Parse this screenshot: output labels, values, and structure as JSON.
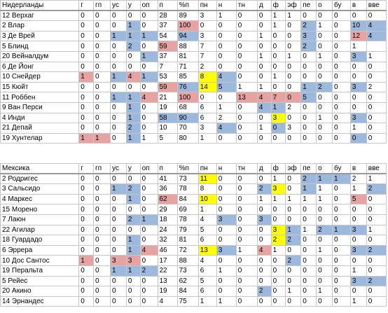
{
  "tables": [
    {
      "headers": [
        "Нидерланды",
        "г",
        "гп",
        "ус",
        "у",
        "оп",
        "п",
        "%п",
        "пн",
        "н",
        "тн",
        "д",
        "ф",
        "эф",
        "пе",
        "о",
        "бу",
        "в",
        "вве"
      ],
      "rows": [
        [
          "12 Верхаг",
          "0",
          "0",
          "0",
          "0",
          "0",
          "28",
          "89",
          "3",
          "1",
          "0",
          "0",
          "1",
          "1",
          "0",
          "0",
          "0",
          "0",
          "0"
        ],
        [
          "2 Влар",
          "0",
          "0",
          "0",
          "1",
          "0",
          "37",
          "100",
          "0",
          "0",
          "0",
          "0",
          "1",
          "0",
          "2",
          "1",
          "0",
          "10",
          "4"
        ],
        [
          "3 Де Врей",
          "0",
          "0",
          "1",
          "1",
          "1",
          "54",
          "94",
          "3",
          "0",
          "0",
          "1",
          "0",
          "0",
          "3",
          "0",
          "0",
          "12",
          "4"
        ],
        [
          "5 Блинд",
          "0",
          "0",
          "0",
          "2",
          "0",
          "59",
          "88",
          "7",
          "0",
          "0",
          "0",
          "0",
          "0",
          "2",
          "0",
          "0",
          "1",
          ""
        ],
        [
          "20 Вейналдум",
          "0",
          "0",
          "0",
          "0",
          "1",
          "37",
          "81",
          "7",
          "0",
          "0",
          "1",
          "0",
          "1",
          "0",
          "1",
          "0",
          "3",
          "1"
        ],
        [
          "6 Де Йонг",
          "0",
          "0",
          "0",
          "0",
          "0",
          "7",
          "71",
          "2",
          "0",
          "0",
          "0",
          "0",
          "0",
          "0",
          "0",
          "0",
          "0",
          "0"
        ],
        [
          "10 Снейдер",
          "1",
          "0",
          "1",
          "4",
          "1",
          "53",
          "85",
          "8",
          "4",
          "0",
          "0",
          "1",
          "0",
          "0",
          "0",
          "0",
          "0",
          "0"
        ],
        [
          "15 Кюйт",
          "0",
          "0",
          "0",
          "0",
          "0",
          "59",
          "76",
          "14",
          "5",
          "1",
          "1",
          "0",
          "0",
          "1",
          "2",
          "0",
          "3",
          "2"
        ],
        [
          "11 Роббен",
          "0",
          "0",
          "1",
          "1",
          "4",
          "21",
          "100",
          "0",
          "0",
          "13",
          "4",
          "7",
          "0",
          "5",
          "0",
          "0",
          "0",
          "0"
        ],
        [
          "9 Ван Перси",
          "0",
          "0",
          "0",
          "1",
          "0",
          "19",
          "68",
          "6",
          "1",
          "0",
          "4",
          "1",
          "2",
          "0",
          "0",
          "0",
          "0",
          "0"
        ],
        [
          "4 Инди",
          "0",
          "0",
          "0",
          "1",
          "0",
          "58",
          "90",
          "6",
          "2",
          "0",
          "0",
          "3",
          "0",
          "0",
          "1",
          "0",
          "3",
          "0"
        ],
        [
          "21 Депай",
          "0",
          "0",
          "0",
          "2",
          "0",
          "10",
          "70",
          "3",
          "4",
          "0",
          "1",
          "0",
          "3",
          "0",
          "0",
          "0",
          "1",
          "0"
        ],
        [
          "19 Хунтелар",
          "1",
          "1",
          "0",
          "1",
          "1",
          "5",
          "80",
          "1",
          "0",
          "0",
          "0",
          "0",
          "0",
          "0",
          "0",
          "0",
          "0",
          "0"
        ]
      ],
      "highlights": [
        [
          0,
          0,
          0,
          0,
          0,
          0,
          0,
          0,
          0,
          0,
          0,
          0,
          0,
          0,
          0,
          0,
          0,
          0,
          0
        ],
        [
          0,
          0,
          0,
          0,
          "b",
          0,
          0,
          "r",
          0,
          0,
          0,
          0,
          0,
          0,
          "b",
          0,
          0,
          "b",
          "b"
        ],
        [
          0,
          0,
          0,
          "b",
          "b",
          "b",
          0,
          "b",
          0,
          0,
          0,
          0,
          0,
          0,
          "b",
          0,
          0,
          "r",
          "b"
        ],
        [
          0,
          0,
          0,
          0,
          "b",
          0,
          "r",
          0,
          0,
          0,
          0,
          0,
          0,
          0,
          "b",
          0,
          0,
          0,
          0
        ],
        [
          0,
          0,
          0,
          0,
          0,
          "b",
          0,
          0,
          0,
          0,
          0,
          0,
          0,
          0,
          0,
          0,
          0,
          "b",
          0
        ],
        [
          0,
          0,
          0,
          0,
          0,
          0,
          0,
          0,
          0,
          0,
          0,
          0,
          0,
          0,
          0,
          0,
          0,
          0,
          0
        ],
        [
          0,
          "r",
          0,
          "b",
          "r",
          "b",
          0,
          0,
          "y",
          "b",
          0,
          0,
          0,
          0,
          0,
          0,
          0,
          0,
          0
        ],
        [
          0,
          0,
          0,
          0,
          0,
          0,
          "r",
          "b",
          "y",
          "b",
          0,
          0,
          0,
          0,
          "b",
          "b",
          0,
          "b",
          0
        ],
        [
          0,
          0,
          0,
          "b",
          "b",
          "r",
          0,
          "r",
          0,
          0,
          "r",
          "r",
          "r",
          "r",
          "b",
          0,
          0,
          0,
          0
        ],
        [
          0,
          0,
          0,
          0,
          "b",
          0,
          0,
          0,
          0,
          0,
          0,
          "b",
          "b",
          0,
          0,
          0,
          0,
          0,
          0
        ],
        [
          0,
          0,
          0,
          0,
          "b",
          0,
          "b",
          "b",
          0,
          0,
          0,
          0,
          "y",
          0,
          0,
          0,
          0,
          "b",
          0
        ],
        [
          0,
          0,
          0,
          0,
          "b",
          0,
          0,
          0,
          0,
          "b",
          0,
          0,
          "b",
          0,
          0,
          0,
          0,
          0,
          0
        ],
        [
          0,
          "r",
          "r",
          0,
          "b",
          0,
          0,
          0,
          0,
          0,
          0,
          0,
          0,
          0,
          0,
          0,
          0,
          "b",
          0
        ]
      ]
    },
    {
      "headers": [
        "Мексика",
        "г",
        "гп",
        "ус",
        "у",
        "оп",
        "п",
        "%п",
        "пн",
        "н",
        "тн",
        "д",
        "ф",
        "эф",
        "пе",
        "о",
        "бу",
        "в",
        "вве"
      ],
      "rows": [
        [
          "2 Родригес",
          "0",
          "0",
          "0",
          "0",
          "0",
          "41",
          "73",
          "11",
          "0",
          "0",
          "0",
          "1",
          "0",
          "2",
          "1",
          "1",
          "2",
          "1"
        ],
        [
          "3 Сальсидо",
          "0",
          "0",
          "1",
          "2",
          "0",
          "36",
          "78",
          "8",
          "0",
          "0",
          "2",
          "3",
          "0",
          "1",
          "1",
          "0",
          "1",
          "2"
        ],
        [
          "4 Маркес",
          "0",
          "0",
          "0",
          "1",
          "0",
          "62",
          "84",
          "10",
          "0",
          "0",
          "1",
          "1",
          "1",
          "1",
          "1",
          "0",
          "5",
          "0"
        ],
        [
          "15 Морено",
          "0",
          "0",
          "0",
          "0",
          "0",
          "29",
          "69",
          "1",
          "0",
          "0",
          "0",
          "0",
          "0",
          "0",
          "0",
          "0",
          "0",
          "0"
        ],
        [
          "7 Лаюн",
          "0",
          "0",
          "0",
          "2",
          "1",
          "18",
          "78",
          "4",
          "3",
          "0",
          "3",
          "0",
          "0",
          "0",
          "0",
          "0",
          "0",
          "0"
        ],
        [
          "22 Агилар",
          "0",
          "0",
          "0",
          "0",
          "0",
          "24",
          "79",
          "5",
          "0",
          "0",
          "0",
          "3",
          "1",
          "1",
          "2",
          "1",
          "3",
          "1"
        ],
        [
          "18 Гуардадо",
          "0",
          "0",
          "0",
          "1",
          "0",
          "32",
          "81",
          "6",
          "0",
          "0",
          "0",
          "2",
          "2",
          "0",
          "0",
          "0",
          "0",
          "0"
        ],
        [
          "6 Эррера",
          "0",
          "0",
          "0",
          "1",
          "4",
          "46",
          "72",
          "13",
          "3",
          "1",
          "4",
          "1",
          "0",
          "0",
          "1",
          "0",
          "3",
          "2"
        ],
        [
          "10 Дос Сантос",
          "1",
          "0",
          "3",
          "3",
          "0",
          "17",
          "88",
          "4",
          "0",
          "0",
          "0",
          "0",
          "2",
          "0",
          "0",
          "0",
          "0",
          "0"
        ],
        [
          "19 Перальта",
          "0",
          "0",
          "1",
          "1",
          "2",
          "22",
          "73",
          "6",
          "1",
          "0",
          "0",
          "0",
          "0",
          "0",
          "0",
          "0",
          "1",
          "0"
        ],
        [
          "5 Рейес",
          "0",
          "0",
          "0",
          "0",
          "0",
          "13",
          "62",
          "5",
          "0",
          "0",
          "0",
          "0",
          "0",
          "0",
          "0",
          "0",
          "3",
          "2"
        ],
        [
          "20 Акино",
          "0",
          "0",
          "0",
          "0",
          "0",
          "19",
          "84",
          "6",
          "0",
          "0",
          "2",
          "0",
          "1",
          "0",
          "1",
          "0",
          "0",
          "0"
        ],
        [
          "14 Эрнандес",
          "0",
          "0",
          "0",
          "0",
          "0",
          "4",
          "75",
          "1",
          "1",
          "0",
          "0",
          "0",
          "0",
          "0",
          "0",
          "0",
          "1",
          "0"
        ]
      ],
      "highlights": [
        [
          0,
          0,
          0,
          0,
          0,
          0,
          0,
          0,
          "y",
          0,
          0,
          0,
          0,
          0,
          "b",
          "b",
          "b",
          0,
          0
        ],
        [
          0,
          0,
          0,
          "b",
          "b",
          0,
          0,
          0,
          0,
          0,
          0,
          "b",
          "y",
          0,
          "b",
          0,
          0,
          0,
          "b"
        ],
        [
          0,
          0,
          0,
          0,
          "b",
          0,
          "r",
          0,
          "y",
          0,
          0,
          0,
          0,
          0,
          0,
          0,
          0,
          "r",
          0
        ],
        [
          0,
          0,
          0,
          0,
          0,
          0,
          0,
          0,
          0,
          0,
          0,
          0,
          0,
          0,
          0,
          0,
          0,
          0,
          0
        ],
        [
          0,
          0,
          0,
          0,
          "b",
          "b",
          0,
          0,
          0,
          "b",
          0,
          "b",
          0,
          0,
          0,
          0,
          0,
          0,
          0
        ],
        [
          0,
          0,
          0,
          0,
          0,
          0,
          0,
          0,
          0,
          0,
          0,
          0,
          "y",
          "b",
          0,
          "b",
          "b",
          "b",
          0
        ],
        [
          0,
          0,
          0,
          0,
          "b",
          0,
          0,
          0,
          0,
          0,
          0,
          0,
          "y",
          "b",
          0,
          0,
          0,
          0,
          0
        ],
        [
          0,
          0,
          0,
          0,
          "b",
          "r",
          0,
          0,
          "y",
          "b",
          0,
          "r",
          0,
          0,
          0,
          0,
          0,
          "b",
          "b"
        ],
        [
          0,
          "r",
          0,
          "r",
          "r",
          0,
          0,
          0,
          0,
          0,
          0,
          0,
          0,
          "b",
          0,
          0,
          0,
          0,
          0
        ],
        [
          0,
          0,
          0,
          "b",
          "b",
          "b",
          0,
          0,
          0,
          0,
          0,
          0,
          0,
          0,
          0,
          0,
          0,
          0,
          0
        ],
        [
          0,
          0,
          0,
          0,
          0,
          0,
          0,
          0,
          0,
          0,
          0,
          0,
          0,
          0,
          0,
          0,
          0,
          "b",
          "b"
        ],
        [
          0,
          0,
          0,
          0,
          0,
          0,
          0,
          0,
          0,
          0,
          0,
          "b",
          0,
          0,
          0,
          0,
          0,
          0,
          0
        ],
        [
          0,
          0,
          0,
          0,
          0,
          0,
          0,
          0,
          0,
          0,
          0,
          0,
          0,
          0,
          0,
          0,
          0,
          0,
          0
        ]
      ]
    }
  ],
  "colors": {
    "r": "#e6a3a2",
    "b": "#9db8dd",
    "y": "#ffff00"
  }
}
